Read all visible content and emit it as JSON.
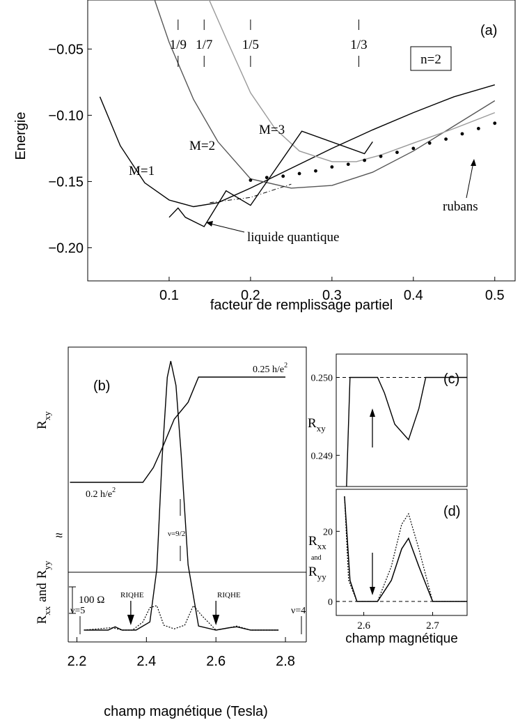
{
  "chart_data": [
    {
      "panel": "(a)",
      "type": "line",
      "xlabel": "facteur de remplissage partiel",
      "ylabel": "Energie",
      "xlim": [
        0.0,
        0.525
      ],
      "ylim": [
        -0.225,
        -0.013
      ],
      "xticks": [
        "0.1",
        "0.2",
        "0.3",
        "0.4",
        "0.5"
      ],
      "yticks": [
        "−0.05",
        "−0.10",
        "−0.15",
        "−0.20"
      ],
      "box_label": "n=2",
      "top_fractions": [
        {
          "label": "1/9",
          "x": 0.111
        },
        {
          "label": "1/7",
          "x": 0.143
        },
        {
          "label": "1/5",
          "x": 0.2
        },
        {
          "label": "1/3",
          "x": 0.333
        }
      ],
      "series": [
        {
          "name": "M=1",
          "color": "#000000",
          "x": [
            0.015,
            0.04,
            0.07,
            0.1,
            0.13,
            0.16,
            0.2,
            0.25,
            0.3,
            0.35,
            0.4,
            0.45,
            0.5
          ],
          "y": [
            -0.086,
            -0.123,
            -0.151,
            -0.164,
            -0.169,
            -0.166,
            -0.155,
            -0.14,
            -0.125,
            -0.111,
            -0.098,
            -0.086,
            -0.077
          ]
        },
        {
          "name": "M=2",
          "color": "#555555",
          "x": [
            0.075,
            0.1,
            0.13,
            0.16,
            0.2,
            0.25,
            0.3,
            0.35,
            0.4,
            0.45,
            0.5
          ],
          "y": [
            0.0,
            -0.045,
            -0.088,
            -0.12,
            -0.148,
            -0.155,
            -0.153,
            -0.143,
            -0.127,
            -0.108,
            -0.089
          ]
        },
        {
          "name": "M=3",
          "color": "#999999",
          "x": [
            0.14,
            0.17,
            0.2,
            0.23,
            0.26,
            0.3,
            0.33,
            0.36,
            0.4,
            0.45,
            0.5
          ],
          "y": [
            0.0,
            -0.042,
            -0.083,
            -0.11,
            -0.127,
            -0.135,
            -0.135,
            -0.13,
            -0.121,
            -0.11,
            -0.098
          ]
        },
        {
          "name": "liquide quantique",
          "color": "#000000",
          "x": [
            0.1,
            0.111,
            0.12,
            0.143,
            0.17,
            0.2,
            0.263,
            0.34,
            0.35
          ],
          "y": [
            -0.177,
            -0.17,
            -0.177,
            -0.184,
            -0.157,
            -0.168,
            -0.112,
            -0.129,
            -0.12
          ]
        },
        {
          "name": "rubans",
          "color": "#000000",
          "style": "dots",
          "x": [
            0.2,
            0.22,
            0.24,
            0.26,
            0.28,
            0.3,
            0.32,
            0.34,
            0.36,
            0.38,
            0.4,
            0.42,
            0.44,
            0.46,
            0.48,
            0.5
          ],
          "y": [
            -0.149,
            -0.147,
            -0.146,
            -0.144,
            -0.142,
            -0.139,
            -0.137,
            -0.134,
            -0.131,
            -0.128,
            -0.125,
            -0.121,
            -0.118,
            -0.114,
            -0.11,
            -0.106
          ]
        }
      ],
      "dashdot": {
        "x": [
          0.15,
          0.2,
          0.25
        ],
        "y": [
          -0.166,
          -0.162,
          -0.152
        ]
      },
      "curve_labels": [
        "M=1",
        "M=2",
        "M=3"
      ],
      "annotations": [
        "liquide quantique",
        "rubans"
      ],
      "panel_label": "(a)"
    },
    {
      "panel": "(b)",
      "type": "line",
      "xlabel": "champ magnétique (Tesla)",
      "xlim": [
        2.175,
        2.86
      ],
      "xticks": [
        "2.2",
        "2.4",
        "2.6",
        "2.8"
      ],
      "y_labels": {
        "top": "R",
        "top_sub": "xy",
        "bottom_a": "R",
        "bottom_a_sub": "xx",
        "and": "and",
        "bottom_b": "R",
        "bottom_b_sub": "yy"
      },
      "scale_bar": "100 Ω",
      "rxy_low": "0.2 h/e",
      "rxy_high": "0.25 h/e",
      "exp": "2",
      "nu_labels": [
        "ν=5",
        "ν=4",
        "ν=9/2"
      ],
      "riqhe": [
        "RIQHE",
        "RIQHE"
      ],
      "riqhe_x": [
        2.355,
        2.6
      ],
      "rxy": {
        "x": [
          2.18,
          2.3,
          2.39,
          2.42,
          2.45,
          2.48,
          2.52,
          2.55,
          2.58,
          2.62,
          2.66,
          2.7,
          2.8
        ],
        "y": [
          0.2,
          0.2,
          0.2,
          0.207,
          0.218,
          0.23,
          0.238,
          0.25,
          0.25,
          0.25,
          0.25,
          0.25,
          0.25
        ]
      },
      "rxx": {
        "x": [
          2.22,
          2.29,
          2.31,
          2.33,
          2.37,
          2.41,
          2.43,
          2.445,
          2.46,
          2.47,
          2.485,
          2.5,
          2.52,
          2.55,
          2.6,
          2.64,
          2.66,
          2.7,
          2.78
        ],
        "y": [
          0,
          0,
          0.08,
          0,
          0,
          0.2,
          1.5,
          4.2,
          6.2,
          6.6,
          6.0,
          4.3,
          1.6,
          0.1,
          0,
          0.06,
          0.08,
          0,
          0
        ]
      },
      "ryy": {
        "x": [
          2.22,
          2.3,
          2.33,
          2.36,
          2.39,
          2.41,
          2.43,
          2.45,
          2.48,
          2.51,
          2.535,
          2.56,
          2.6,
          2.64,
          2.66,
          2.7,
          2.78
        ],
        "y": [
          0,
          0.06,
          0,
          0,
          0.2,
          0.55,
          0.6,
          0.12,
          0.03,
          0.12,
          0.6,
          0.35,
          0,
          0.06,
          0.1,
          0,
          0
        ]
      },
      "panel_label": "(b)"
    },
    {
      "panel": "(c)",
      "type": "line",
      "ylabel": "R",
      "ylabel_sub": "xy",
      "yticks": [
        "0.250",
        "0.249"
      ],
      "ylim": [
        0.2486,
        0.2503
      ],
      "xlim": [
        2.56,
        2.75
      ],
      "x": [
        2.575,
        2.58,
        2.59,
        2.6,
        2.62,
        2.63,
        2.645,
        2.665,
        2.68,
        2.69,
        2.7,
        2.75
      ],
      "y": [
        0.2486,
        0.25,
        0.25,
        0.25,
        0.25,
        0.2498,
        0.2494,
        0.2492,
        0.2496,
        0.25,
        0.25,
        0.25
      ],
      "reference": 0.25,
      "panel_label": "(c)"
    },
    {
      "panel": "(d)",
      "type": "line",
      "ylabel": "R",
      "ylabel_sub": "xx",
      "and": "and",
      "ylabel2": "R",
      "ylabel2_sub": "yy",
      "xlabel": "champ magnétique",
      "xticks": [
        "2.6",
        "2.7"
      ],
      "yticks": [
        "20",
        "0"
      ],
      "xlim": [
        2.56,
        2.75
      ],
      "ylim": [
        -4,
        32
      ],
      "solid": {
        "x": [
          2.572,
          2.58,
          2.59,
          2.62,
          2.64,
          2.655,
          2.665,
          2.68,
          2.7,
          2.75
        ],
        "y": [
          30,
          6,
          0,
          0,
          6,
          15,
          18,
          10,
          0,
          0
        ]
      },
      "dotted": {
        "x": [
          2.572,
          2.578,
          2.59,
          2.62,
          2.64,
          2.655,
          2.665,
          2.68,
          2.7,
          2.75
        ],
        "y": [
          30,
          6,
          0,
          0,
          10,
          22,
          25,
          15,
          0,
          0
        ]
      },
      "reference": 0,
      "panel_label": "(d)"
    }
  ]
}
